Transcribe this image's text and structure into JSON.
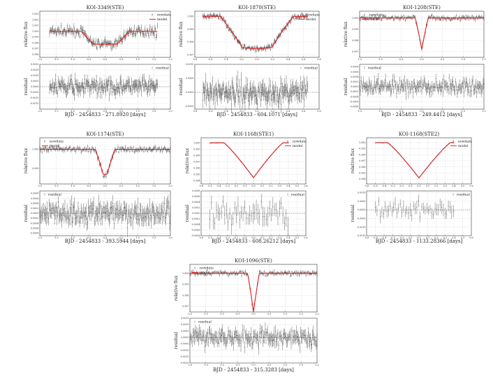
{
  "chart_data": [
    {
      "type": "scatter",
      "title": "KOI-3349(STE)",
      "xlabel": "BJD - 2454833 - 271.8920 [days]",
      "ylabel_top": "relative flux",
      "ylabel_bottom": "residual",
      "legend_top": [
        "nowdata",
        "model"
      ],
      "legend_bottom": [
        "residual"
      ],
      "legend_position": "top-right",
      "xlim": [
        -2.0,
        2.0
      ],
      "xticks": [
        "-2.0",
        "-1.5",
        "-1.0",
        "-0.5",
        "0.0",
        "0.5",
        "1.0",
        "1.5",
        "2.0"
      ],
      "xdata": [
        -1.7,
        1.6
      ],
      "ylim_top": [
        0.9955,
        1.0035
      ],
      "ylim_bottom": [
        -0.002,
        0.002
      ],
      "yticks_top": [
        "1.003",
        "1.002",
        "1.001",
        "1.000",
        "0.999",
        "0.998",
        "0.997",
        "0.996"
      ],
      "yticks_bottom": [
        "0.0020",
        "0.0015",
        "0.0010",
        "0.0005",
        "0.0000",
        "-0.0005",
        "-0.0010",
        "-0.0015"
      ],
      "transit": {
        "center": 0.0,
        "depth": 0.0022,
        "half_width": 0.55,
        "ingress": 0.18,
        "shape": "box"
      },
      "noise_flux": 0.0005,
      "noise_resid": 0.00045,
      "grid": true
    },
    {
      "type": "scatter",
      "title": "KOI-1870(STE)",
      "xlabel": "BJD - 2454833 - 604.1071 [days]",
      "ylabel_top": "relative flux",
      "ylabel_bottom": "residual",
      "legend_top": [
        "nowdata",
        "model"
      ],
      "legend_bottom": [
        "residual"
      ],
      "legend_position": "top-right",
      "xlim": [
        -0.8,
        0.8
      ],
      "xticks": [
        "-0.8",
        "-0.6",
        "-0.4",
        "-0.2",
        "0.0",
        "0.2",
        "0.4",
        "0.6",
        "0.8"
      ],
      "xdata": [
        -0.7,
        0.65
      ],
      "ylim_top": [
        0.9968,
        1.0004
      ],
      "ylim_bottom": [
        -0.0006,
        0.001
      ],
      "yticks_top": [
        "1.000",
        "0.999",
        "0.998",
        "0.997"
      ],
      "yticks_bottom": [
        "0.0010",
        "0.0005",
        "0.0000",
        "-0.0005"
      ],
      "transit": {
        "center": 0.0,
        "depth": 0.0025,
        "half_width": 0.33,
        "ingress": 0.14,
        "shape": "u"
      },
      "noise_flux": 0.00015,
      "noise_resid": 0.00025,
      "grid": true
    },
    {
      "type": "scatter",
      "title": "KOI-1208(STE)",
      "xlabel": "BJD - 2454833 - 249.4412 [days]",
      "ylabel_top": "relative flux",
      "ylabel_bottom": "residual",
      "legend_top": [
        "nowdata",
        "model"
      ],
      "legend_bottom": [
        "residual"
      ],
      "legend_position": "top-left",
      "xlim": [
        -1.5,
        1.5
      ],
      "xticks": [
        "-1.5",
        "-1.0",
        "-0.5",
        "0.0",
        "0.5",
        "1.0",
        "1.5"
      ],
      "xdata": [
        -1.5,
        1.5
      ],
      "ylim_top": [
        0.9965,
        1.0006
      ],
      "ylim_bottom": [
        -0.0009,
        0.0009
      ],
      "yticks_top": [
        "1.000",
        "0.999",
        "0.998",
        "0.997"
      ],
      "yticks_bottom": [
        "0.0008",
        "0.0006",
        "0.0004",
        "0.0002",
        "0.0000",
        "-0.0002",
        "-0.0004",
        "-0.0006",
        "-0.0008"
      ],
      "transit": {
        "center": 0.0,
        "depth": 0.0028,
        "half_width": 0.09,
        "ingress": 0.07,
        "shape": "v"
      },
      "noise_flux": 0.00015,
      "noise_resid": 0.0002,
      "grid": true
    },
    {
      "type": "scatter",
      "title": "KOI-1174(STE)",
      "xlabel": "BJD - 2454833 - 393.5944 [days]",
      "ylabel_top": "relative flux",
      "ylabel_bottom": "residual",
      "legend_top": [
        "nowdata",
        "model"
      ],
      "legend_bottom": [
        "residual"
      ],
      "legend_position": "top-left",
      "xlim": [
        -2.0,
        2.0
      ],
      "xticks": [
        "-2.0",
        "-1.5",
        "-1.0",
        "-0.5",
        "0.0",
        "0.5",
        "1.0",
        "1.5",
        "2.0"
      ],
      "xdata": [
        -2.0,
        2.0
      ],
      "ylim_top": [
        0.9982,
        1.0006
      ],
      "ylim_bottom": [
        -0.0009,
        0.0009
      ],
      "yticks_top": [
        "1.000",
        "0.999",
        "0.998"
      ],
      "yticks_bottom": [
        "0.0008",
        "0.0006",
        "0.0004",
        "0.0002",
        "0.0000",
        "-0.0002",
        "-0.0004",
        "-0.0006",
        "-0.0008"
      ],
      "transit": {
        "center": 0.0,
        "depth": 0.0013,
        "half_width": 0.18,
        "ingress": 0.12,
        "shape": "u"
      },
      "noise_flux": 0.0001,
      "noise_resid": 0.0003,
      "grid": true
    },
    {
      "type": "scatter",
      "title": "KOI-1168(STE1)",
      "xlabel": "BJD - 2454833 - 608.26212 [days]",
      "ylabel_top": "relative flux",
      "ylabel_bottom": "residual",
      "legend_top": [
        "nowdata",
        "model"
      ],
      "legend_bottom": [
        "residual"
      ],
      "legend_position": "top-right",
      "xlim": [
        -0.6,
        0.6
      ],
      "xticks": [
        "-0.6",
        "-0.5",
        "-0.4",
        "-0.3",
        "-0.2",
        "-0.1",
        "0.0",
        "0.1",
        "0.2",
        "0.3",
        "0.4",
        "0.5",
        "0.6"
      ],
      "xdata": [
        -0.5,
        0.4
      ],
      "ylim_top": [
        0.9935,
        1.0008
      ],
      "ylim_bottom": [
        -0.0008,
        0.0008
      ],
      "yticks_top": [
        "1.000",
        "0.999",
        "0.998",
        "0.997",
        "0.996",
        "0.995",
        "0.994"
      ],
      "yticks_bottom": [
        "0.0008",
        "0.0006",
        "0.0004",
        "0.0002",
        "0.0000",
        "-0.0002",
        "-0.0004",
        "-0.0006",
        "-0.0008"
      ],
      "transit": {
        "center": 0.0,
        "depth": 0.0055,
        "half_width": 0.18,
        "ingress": 0.16,
        "shape": "v"
      },
      "noise_flux": 4e-05,
      "noise_resid": 0.00028,
      "grid": true,
      "resid_step": 3
    },
    {
      "type": "scatter",
      "title": "KOI-1168(STE2)",
      "xlabel": "BJD - 2454833 - 1133.28366 [days]",
      "ylabel_top": "relative flux",
      "ylabel_bottom": "residual",
      "legend_top": [
        "nowdata",
        "model"
      ],
      "legend_bottom": [
        "residual"
      ],
      "legend_position": "top-right",
      "xlim": [
        -0.6,
        0.6
      ],
      "xticks": [
        "-0.6",
        "-0.5",
        "-0.4",
        "-0.3",
        "-0.2",
        "-0.1",
        "0.0",
        "0.1",
        "0.2",
        "0.3",
        "0.4",
        "0.5",
        "0.6"
      ],
      "xdata": [
        -0.5,
        0.4
      ],
      "ylim_top": [
        0.9932,
        1.0008
      ],
      "ylim_bottom": [
        -0.0015,
        0.0011
      ],
      "yticks_top": [
        "1.000",
        "0.999",
        "0.998",
        "0.997",
        "0.996",
        "0.995",
        "0.994"
      ],
      "yticks_bottom": [
        "0.0010",
        "0.0005",
        "0.0000",
        "-0.0005",
        "-0.0010",
        "-0.0015"
      ],
      "transit": {
        "center": 0.0,
        "depth": 0.0058,
        "half_width": 0.19,
        "ingress": 0.17,
        "shape": "v"
      },
      "noise_flux": 4e-05,
      "noise_resid": 0.0003,
      "grid": true,
      "resid_step": 3
    },
    {
      "type": "scatter",
      "title": "KOI-1096(STE)",
      "xlabel": "BJD - 2454833 - 315.3283 [days]",
      "ylabel_top": "relative flux",
      "ylabel_bottom": "residual",
      "legend_top": [
        "nowdata",
        "model"
      ],
      "legend_bottom": [
        "residual"
      ],
      "legend_position": "top-left",
      "xlim": [
        -2.0,
        2.0
      ],
      "xticks": [
        "-2.0",
        "-1.5",
        "-1.0",
        "-0.5",
        "0.0",
        "0.5",
        "1.0",
        "1.5",
        "2.0"
      ],
      "xdata": [
        -2.0,
        2.0
      ],
      "ylim_top": [
        0.9965,
        1.0008
      ],
      "ylim_bottom": [
        -0.002,
        0.0015
      ],
      "yticks_top": [
        "1.000",
        "0.999",
        "0.998",
        "0.997"
      ],
      "yticks_bottom": [
        "0.0015",
        "0.0010",
        "0.0005",
        "0.0000",
        "-0.0005",
        "-0.0010",
        "-0.0015",
        "-0.0020"
      ],
      "transit": {
        "center": 0.0,
        "depth": 0.0035,
        "half_width": 0.1,
        "ingress": 0.09,
        "shape": "v"
      },
      "noise_flux": 0.00015,
      "noise_resid": 0.00045,
      "grid": true
    }
  ],
  "colors": {
    "model": "#e02020",
    "points": "#111111",
    "grid": "#bbbbbb"
  }
}
